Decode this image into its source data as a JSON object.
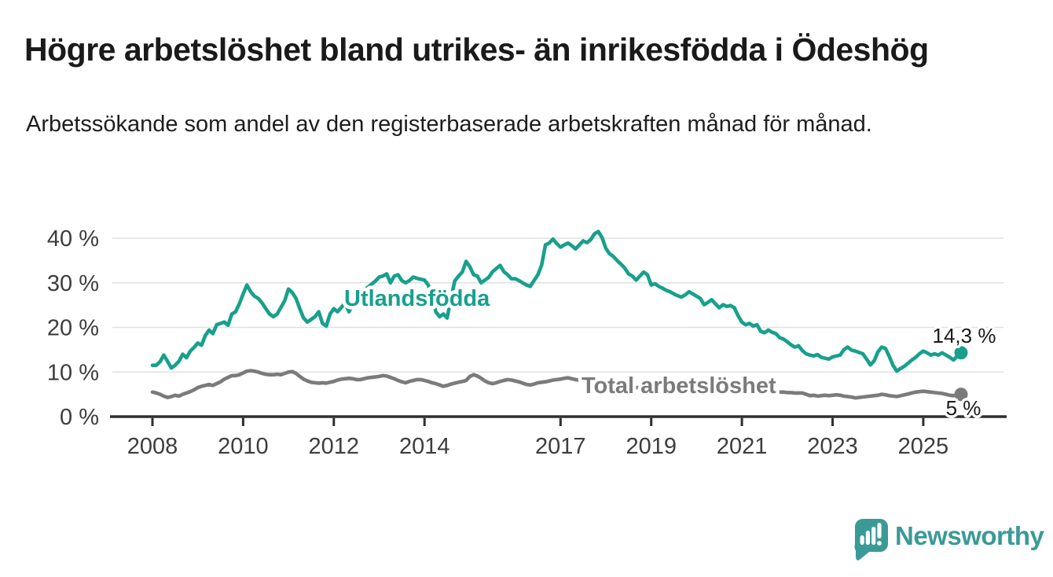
{
  "title": "Högre arbetslöshet bland utrikes- än inrikesfödda i Ödeshög",
  "subtitle": "Arbetssökande som andel av den registerbaserade arbetskraften månad för månad.",
  "colors": {
    "foreign_born_line": "#18a08c",
    "total_line": "#7b7b7b",
    "axis": "#2f2f2f",
    "gridline": "#e0e0e0",
    "tick_label": "#3d3d3d",
    "end_label": "#1a1a1a",
    "logo_teal": "#3a9a96",
    "background": "#ffffff"
  },
  "chart_data": {
    "type": "line",
    "unit": "%",
    "grid": "horizontal",
    "legend": "inline-labels",
    "x_start": {
      "year": 2008,
      "month": 1
    },
    "x_end": {
      "year": 2025,
      "month": 11
    },
    "points_frequency": "monthly",
    "x_tick_years": [
      2008,
      2010,
      2012,
      2014,
      2017,
      2019,
      2021,
      2023,
      2025
    ],
    "x_tick_labels": [
      "2008",
      "2010",
      "2012",
      "2014",
      "2017",
      "2019",
      "2021",
      "2023",
      "2025"
    ],
    "y_ticks": [
      0,
      10,
      20,
      30,
      40
    ],
    "y_tick_labels": [
      "0 %",
      "10 %",
      "20 %",
      "30 %",
      "40 %"
    ],
    "ylim": [
      0,
      44
    ],
    "series": [
      {
        "name": "Utlandsfödda",
        "color": "#18a08c",
        "end_label": "14,3 %",
        "end_value": 14.3,
        "values": [
          11.5,
          11.5,
          12.3,
          13.8,
          12.4,
          10.9,
          11.5,
          12.4,
          14.0,
          13.2,
          14.7,
          15.5,
          16.5,
          16.0,
          18.2,
          19.4,
          18.6,
          20.6,
          20.9,
          21.2,
          20.5,
          23.0,
          23.5,
          25.3,
          27.5,
          29.5,
          28.0,
          27.0,
          26.5,
          25.5,
          24.2,
          23.0,
          22.4,
          23.0,
          24.5,
          26.0,
          28.6,
          27.8,
          26.5,
          24.2,
          22.1,
          21.2,
          21.8,
          22.4,
          23.5,
          20.9,
          20.3,
          23.0,
          24.2,
          23.5,
          24.5,
          25.5,
          23.5,
          25.0,
          26.5,
          27.5,
          28.3,
          29.0,
          29.7,
          30.4,
          31.3,
          31.5,
          32.0,
          30.0,
          31.5,
          31.8,
          30.5,
          30.0,
          30.5,
          31.3,
          31.0,
          30.8,
          30.6,
          29.5,
          27.1,
          23.5,
          22.4,
          23.0,
          22.1,
          26.5,
          30.4,
          31.5,
          32.4,
          34.8,
          33.6,
          31.8,
          31.5,
          30.0,
          30.6,
          31.2,
          32.5,
          33.2,
          33.9,
          32.5,
          31.8,
          30.9,
          30.9,
          30.5,
          30.0,
          29.5,
          29.2,
          30.5,
          31.8,
          34.0,
          38.5,
          38.9,
          39.8,
          38.8,
          38.0,
          38.5,
          38.9,
          38.3,
          37.6,
          38.5,
          39.4,
          39.0,
          39.7,
          41.0,
          41.5,
          40.1,
          37.7,
          36.5,
          35.9,
          35.0,
          34.2,
          33.3,
          32.0,
          31.5,
          30.6,
          31.5,
          32.4,
          31.8,
          29.5,
          29.8,
          29.2,
          28.8,
          28.3,
          28.0,
          27.5,
          27.1,
          26.8,
          27.3,
          28.0,
          27.5,
          27.0,
          26.5,
          25.1,
          25.6,
          26.2,
          25.3,
          24.4,
          25.1,
          24.7,
          24.9,
          24.4,
          22.6,
          21.2,
          20.6,
          20.9,
          20.3,
          20.6,
          19.1,
          18.8,
          19.4,
          18.9,
          18.6,
          17.7,
          17.4,
          16.8,
          16.1,
          15.6,
          15.9,
          14.8,
          14.1,
          13.8,
          13.6,
          13.9,
          13.3,
          13.1,
          12.9,
          13.4,
          13.6,
          13.8,
          15.0,
          15.6,
          14.9,
          14.7,
          14.4,
          14.1,
          12.9,
          11.6,
          12.5,
          14.5,
          15.6,
          15.3,
          13.5,
          11.5,
          10.2,
          10.8,
          11.3,
          12.0,
          12.7,
          13.3,
          14.1,
          14.7,
          14.3,
          13.8,
          14.1,
          13.8,
          14.3,
          13.8,
          13.3,
          12.7,
          13.6,
          14.3
        ]
      },
      {
        "name": "Total arbetslöshet",
        "color": "#7b7b7b",
        "end_label": "5 %",
        "end_value": 5.0,
        "values": [
          5.5,
          5.3,
          5.0,
          4.6,
          4.3,
          4.5,
          4.8,
          4.6,
          5.0,
          5.3,
          5.6,
          6.0,
          6.5,
          6.8,
          7.0,
          7.2,
          7.0,
          7.4,
          7.8,
          8.4,
          8.8,
          9.2,
          9.2,
          9.4,
          9.8,
          10.2,
          10.3,
          10.2,
          10.0,
          9.7,
          9.5,
          9.4,
          9.4,
          9.5,
          9.4,
          9.7,
          10.0,
          10.1,
          9.7,
          9.0,
          8.4,
          8.0,
          7.7,
          7.6,
          7.5,
          7.6,
          7.5,
          7.7,
          7.9,
          8.2,
          8.4,
          8.5,
          8.6,
          8.5,
          8.3,
          8.3,
          8.5,
          8.7,
          8.8,
          8.9,
          9.0,
          9.2,
          9.1,
          8.8,
          8.5,
          8.1,
          7.8,
          7.6,
          7.9,
          8.1,
          8.3,
          8.3,
          8.1,
          7.9,
          7.6,
          7.4,
          7.1,
          6.8,
          7.0,
          7.3,
          7.5,
          7.7,
          7.9,
          8.1,
          9.0,
          9.4,
          9.1,
          8.6,
          8.0,
          7.6,
          7.4,
          7.6,
          7.9,
          8.1,
          8.3,
          8.2,
          8.0,
          7.8,
          7.5,
          7.2,
          7.1,
          7.3,
          7.6,
          7.7,
          7.8,
          8.0,
          8.2,
          8.3,
          8.4,
          8.6,
          8.7,
          8.5,
          8.3,
          8.2,
          8.0,
          7.8,
          7.7,
          7.6,
          7.5,
          7.4,
          7.2,
          7.1,
          7.0,
          6.9,
          6.8,
          6.7,
          6.6,
          6.6,
          6.5,
          6.5,
          6.6,
          6.6,
          6.7,
          6.7,
          6.6,
          6.5,
          6.4,
          6.4,
          6.5,
          6.6,
          6.6,
          6.7,
          6.8,
          6.9,
          7.1,
          7.3,
          7.6,
          7.8,
          7.9,
          7.8,
          7.7,
          7.5,
          7.3,
          7.1,
          7.0,
          6.9,
          6.8,
          6.7,
          6.5,
          6.3,
          6.2,
          6.0,
          5.9,
          5.8,
          5.7,
          5.6,
          5.5,
          5.5,
          5.4,
          5.4,
          5.3,
          5.3,
          5.3,
          5.0,
          4.7,
          4.8,
          4.6,
          4.7,
          4.8,
          4.7,
          4.8,
          4.9,
          4.8,
          4.6,
          4.5,
          4.4,
          4.2,
          4.3,
          4.4,
          4.5,
          4.6,
          4.7,
          4.8,
          5.0,
          4.9,
          4.7,
          4.6,
          4.5,
          4.7,
          4.9,
          5.1,
          5.3,
          5.5,
          5.6,
          5.7,
          5.6,
          5.5,
          5.4,
          5.3,
          5.2,
          5.0,
          4.8,
          4.7,
          4.9,
          5.0
        ]
      }
    ]
  },
  "branding": {
    "logo_text": "Newsworthy",
    "logo_icon": "bar-chart-speech-bubble-icon"
  }
}
